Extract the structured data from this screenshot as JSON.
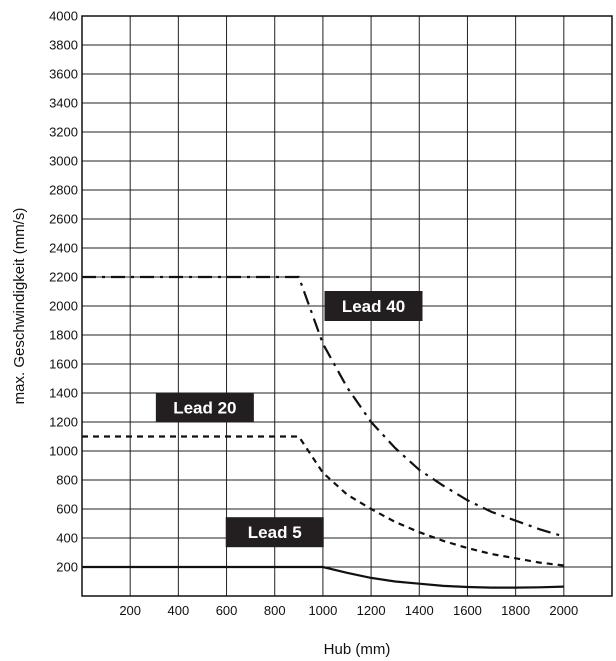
{
  "chart_data": {
    "type": "line",
    "title": "",
    "xlabel": "Hub (mm)",
    "ylabel": "max. Geschwindigkeit (mm/s)",
    "xlim": [
      0,
      2200
    ],
    "ylim": [
      0,
      4000
    ],
    "x_ticks": [
      200,
      400,
      600,
      800,
      1000,
      1200,
      1400,
      1600,
      1800,
      2000
    ],
    "y_ticks": [
      200,
      400,
      600,
      800,
      1000,
      1200,
      1400,
      1600,
      1800,
      2000,
      2200,
      2400,
      2600,
      2800,
      3000,
      3200,
      3400,
      3600,
      3800,
      4000
    ],
    "grid": true,
    "series": [
      {
        "name": "Lead 40",
        "style": "dash-dot",
        "label_anchor": {
          "x": 1210,
          "y": 2000
        },
        "x": [
          0,
          900,
          1000,
          1100,
          1200,
          1300,
          1400,
          1500,
          1600,
          1700,
          1800,
          1900,
          2000
        ],
        "y": [
          2200,
          2200,
          1740,
          1440,
          1200,
          1020,
          870,
          760,
          660,
          580,
          520,
          460,
          410
        ]
      },
      {
        "name": "Lead 20",
        "style": "dashed",
        "label_anchor": {
          "x": 510,
          "y": 1300
        },
        "x": [
          0,
          900,
          1000,
          1100,
          1200,
          1300,
          1400,
          1500,
          1600,
          1700,
          1800,
          1900,
          2000
        ],
        "y": [
          1100,
          1100,
          850,
          700,
          600,
          510,
          440,
          380,
          330,
          290,
          260,
          230,
          210
        ]
      },
      {
        "name": "Lead 5",
        "style": "solid",
        "label_anchor": {
          "x": 800,
          "y": 440
        },
        "x": [
          0,
          1000,
          1100,
          1200,
          1300,
          1400,
          1500,
          1600,
          1700,
          1800,
          1900,
          2000
        ],
        "y": [
          200,
          200,
          160,
          125,
          100,
          85,
          70,
          62,
          58,
          58,
          60,
          65
        ]
      }
    ]
  }
}
